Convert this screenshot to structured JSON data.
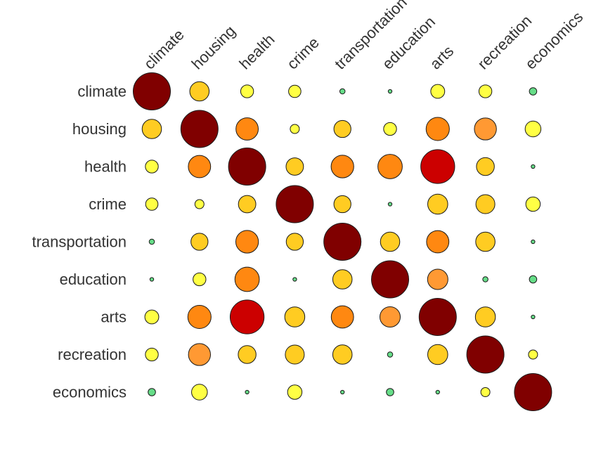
{
  "chart_data": {
    "type": "heatmap",
    "variables": [
      "climate",
      "housing",
      "health",
      "crime",
      "transportation",
      "education",
      "arts",
      "recreation",
      "economics"
    ],
    "row_labels": [
      "climate",
      "housing",
      "health",
      "crime",
      "transportation",
      "education",
      "arts",
      "recreation",
      "economics"
    ],
    "col_labels": [
      "climate",
      "housing",
      "health",
      "crime",
      "transportation",
      "education",
      "arts",
      "recreation",
      "economics"
    ],
    "matrix": [
      [
        1.0,
        0.27,
        0.12,
        0.11,
        0.02,
        0.01,
        0.14,
        0.12,
        0.04
      ],
      [
        0.27,
        1.0,
        0.36,
        0.06,
        0.21,
        0.12,
        0.39,
        0.35,
        0.18
      ],
      [
        0.12,
        0.36,
        1.0,
        0.22,
        0.37,
        0.43,
        0.83,
        0.23,
        0.01
      ],
      [
        0.11,
        0.06,
        0.22,
        1.0,
        0.21,
        0.01,
        0.29,
        0.26,
        0.15
      ],
      [
        0.02,
        0.21,
        0.37,
        0.21,
        1.0,
        0.27,
        0.36,
        0.27,
        0.01
      ],
      [
        0.01,
        0.12,
        0.43,
        0.01,
        0.27,
        1.0,
        0.3,
        0.02,
        0.04
      ],
      [
        0.14,
        0.39,
        0.83,
        0.29,
        0.36,
        0.3,
        1.0,
        0.29,
        0.01
      ],
      [
        0.12,
        0.35,
        0.23,
        0.26,
        0.27,
        0.02,
        0.29,
        1.0,
        0.06
      ],
      [
        0.04,
        0.18,
        0.01,
        0.15,
        0.01,
        0.04,
        0.01,
        0.06,
        1.0
      ]
    ],
    "shape": "circle",
    "legend": "none",
    "grid": false,
    "colors": {
      "very_low": "#66dd88",
      "low": "#ffff44",
      "mid_low": "#ffcc22",
      "mid": "#ff9933",
      "high": "#ff8811",
      "very_high": "#cc0000",
      "max": "#800000"
    }
  }
}
